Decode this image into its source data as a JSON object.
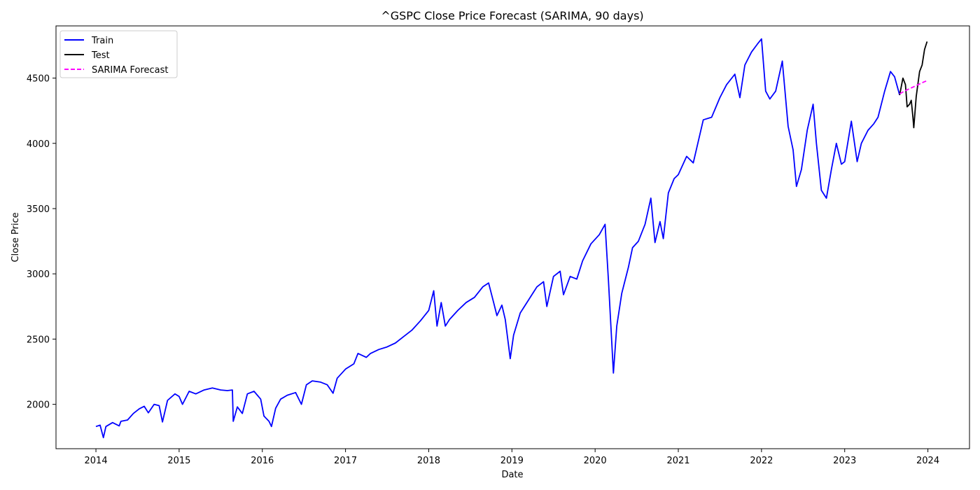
{
  "chart_data": {
    "type": "line",
    "title": "^GSPC Close Price Forecast (SARIMA, 90 days)",
    "xlabel": "Date",
    "ylabel": "Close Price",
    "xlim": [
      2013.52,
      2024.5
    ],
    "ylim": [
      1660,
      4900
    ],
    "x_ticks": [
      2014,
      2015,
      2016,
      2017,
      2018,
      2019,
      2020,
      2021,
      2022,
      2023,
      2024
    ],
    "x_tick_labels": [
      "2014",
      "2015",
      "2016",
      "2017",
      "2018",
      "2019",
      "2020",
      "2021",
      "2022",
      "2023",
      "2024"
    ],
    "y_ticks": [
      2000,
      2500,
      3000,
      3500,
      4000,
      4500
    ],
    "y_tick_labels": [
      "2000",
      "2500",
      "3000",
      "3500",
      "4000",
      "4500"
    ],
    "grid": false,
    "legend_position": "top-left",
    "series": [
      {
        "name": "Train",
        "color": "#0000ff",
        "style": "solid",
        "points": [
          [
            2014.0,
            1830
          ],
          [
            2014.05,
            1840
          ],
          [
            2014.09,
            1745
          ],
          [
            2014.12,
            1830
          ],
          [
            2014.2,
            1860
          ],
          [
            2014.28,
            1835
          ],
          [
            2014.3,
            1870
          ],
          [
            2014.38,
            1880
          ],
          [
            2014.45,
            1930
          ],
          [
            2014.52,
            1965
          ],
          [
            2014.58,
            1985
          ],
          [
            2014.63,
            1935
          ],
          [
            2014.7,
            2000
          ],
          [
            2014.76,
            1990
          ],
          [
            2014.8,
            1865
          ],
          [
            2014.86,
            2030
          ],
          [
            2014.95,
            2080
          ],
          [
            2015.0,
            2060
          ],
          [
            2015.04,
            2000
          ],
          [
            2015.12,
            2100
          ],
          [
            2015.2,
            2080
          ],
          [
            2015.3,
            2110
          ],
          [
            2015.4,
            2125
          ],
          [
            2015.5,
            2110
          ],
          [
            2015.58,
            2105
          ],
          [
            2015.64,
            2110
          ],
          [
            2015.65,
            1870
          ],
          [
            2015.7,
            1980
          ],
          [
            2015.76,
            1930
          ],
          [
            2015.82,
            2080
          ],
          [
            2015.9,
            2100
          ],
          [
            2015.98,
            2040
          ],
          [
            2016.02,
            1910
          ],
          [
            2016.08,
            1870
          ],
          [
            2016.11,
            1830
          ],
          [
            2016.16,
            1970
          ],
          [
            2016.22,
            2040
          ],
          [
            2016.3,
            2070
          ],
          [
            2016.4,
            2090
          ],
          [
            2016.47,
            2000
          ],
          [
            2016.53,
            2150
          ],
          [
            2016.6,
            2180
          ],
          [
            2016.7,
            2170
          ],
          [
            2016.78,
            2150
          ],
          [
            2016.85,
            2085
          ],
          [
            2016.9,
            2200
          ],
          [
            2017.0,
            2270
          ],
          [
            2017.1,
            2310
          ],
          [
            2017.15,
            2390
          ],
          [
            2017.25,
            2360
          ],
          [
            2017.3,
            2390
          ],
          [
            2017.4,
            2420
          ],
          [
            2017.5,
            2440
          ],
          [
            2017.6,
            2470
          ],
          [
            2017.7,
            2520
          ],
          [
            2017.8,
            2570
          ],
          [
            2017.9,
            2640
          ],
          [
            2018.0,
            2720
          ],
          [
            2018.06,
            2870
          ],
          [
            2018.1,
            2600
          ],
          [
            2018.15,
            2780
          ],
          [
            2018.2,
            2600
          ],
          [
            2018.25,
            2650
          ],
          [
            2018.35,
            2720
          ],
          [
            2018.45,
            2780
          ],
          [
            2018.55,
            2820
          ],
          [
            2018.65,
            2900
          ],
          [
            2018.72,
            2930
          ],
          [
            2018.78,
            2780
          ],
          [
            2018.82,
            2680
          ],
          [
            2018.88,
            2760
          ],
          [
            2018.92,
            2650
          ],
          [
            2018.98,
            2350
          ],
          [
            2019.02,
            2530
          ],
          [
            2019.1,
            2700
          ],
          [
            2019.2,
            2800
          ],
          [
            2019.3,
            2900
          ],
          [
            2019.38,
            2940
          ],
          [
            2019.42,
            2750
          ],
          [
            2019.5,
            2980
          ],
          [
            2019.58,
            3020
          ],
          [
            2019.62,
            2840
          ],
          [
            2019.7,
            2980
          ],
          [
            2019.78,
            2960
          ],
          [
            2019.85,
            3100
          ],
          [
            2019.95,
            3230
          ],
          [
            2020.05,
            3300
          ],
          [
            2020.12,
            3380
          ],
          [
            2020.16,
            2950
          ],
          [
            2020.2,
            2480
          ],
          [
            2020.22,
            2240
          ],
          [
            2020.26,
            2600
          ],
          [
            2020.32,
            2850
          ],
          [
            2020.4,
            3050
          ],
          [
            2020.45,
            3200
          ],
          [
            2020.52,
            3250
          ],
          [
            2020.6,
            3380
          ],
          [
            2020.67,
            3580
          ],
          [
            2020.72,
            3240
          ],
          [
            2020.78,
            3400
          ],
          [
            2020.82,
            3270
          ],
          [
            2020.88,
            3620
          ],
          [
            2020.95,
            3730
          ],
          [
            2021.0,
            3760
          ],
          [
            2021.1,
            3900
          ],
          [
            2021.18,
            3850
          ],
          [
            2021.3,
            4180
          ],
          [
            2021.4,
            4200
          ],
          [
            2021.5,
            4350
          ],
          [
            2021.58,
            4450
          ],
          [
            2021.68,
            4530
          ],
          [
            2021.74,
            4350
          ],
          [
            2021.8,
            4600
          ],
          [
            2021.88,
            4700
          ],
          [
            2021.95,
            4760
          ],
          [
            2022.0,
            4800
          ],
          [
            2022.05,
            4400
          ],
          [
            2022.1,
            4340
          ],
          [
            2022.17,
            4400
          ],
          [
            2022.25,
            4630
          ],
          [
            2022.32,
            4130
          ],
          [
            2022.38,
            3950
          ],
          [
            2022.42,
            3670
          ],
          [
            2022.48,
            3800
          ],
          [
            2022.55,
            4100
          ],
          [
            2022.62,
            4300
          ],
          [
            2022.66,
            4000
          ],
          [
            2022.72,
            3640
          ],
          [
            2022.78,
            3580
          ],
          [
            2022.84,
            3800
          ],
          [
            2022.9,
            4000
          ],
          [
            2022.96,
            3840
          ],
          [
            2023.0,
            3860
          ],
          [
            2023.08,
            4170
          ],
          [
            2023.15,
            3860
          ],
          [
            2023.2,
            4000
          ],
          [
            2023.28,
            4100
          ],
          [
            2023.35,
            4150
          ],
          [
            2023.4,
            4200
          ],
          [
            2023.48,
            4400
          ],
          [
            2023.55,
            4550
          ],
          [
            2023.6,
            4510
          ],
          [
            2023.66,
            4370
          ]
        ]
      },
      {
        "name": "Test",
        "color": "#000000",
        "style": "solid",
        "points": [
          [
            2023.66,
            4370
          ],
          [
            2023.7,
            4500
          ],
          [
            2023.73,
            4450
          ],
          [
            2023.75,
            4280
          ],
          [
            2023.78,
            4300
          ],
          [
            2023.8,
            4330
          ],
          [
            2023.82,
            4200
          ],
          [
            2023.83,
            4120
          ],
          [
            2023.86,
            4360
          ],
          [
            2023.9,
            4550
          ],
          [
            2023.93,
            4600
          ],
          [
            2023.96,
            4720
          ],
          [
            2023.99,
            4780
          ]
        ]
      },
      {
        "name": "SARIMA Forecast",
        "color": "#ff00ff",
        "style": "dashed",
        "points": [
          [
            2023.66,
            4380
          ],
          [
            2023.75,
            4410
          ],
          [
            2023.85,
            4440
          ],
          [
            2023.95,
            4470
          ],
          [
            2023.99,
            4480
          ]
        ]
      }
    ]
  }
}
